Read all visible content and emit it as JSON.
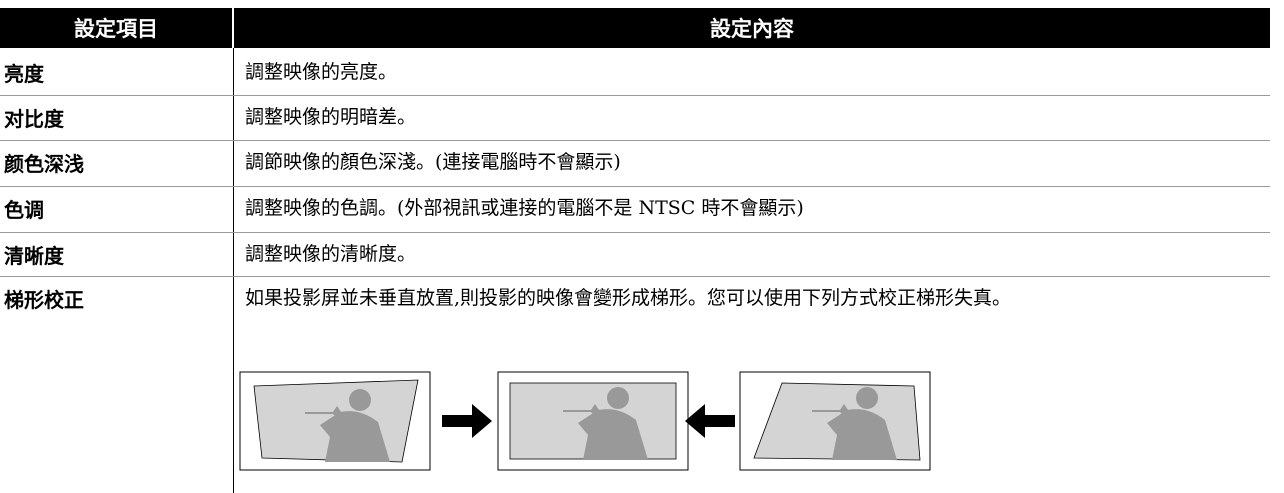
{
  "table": {
    "header": [
      "設定項目",
      "設定內容"
    ],
    "rows": [
      [
        "亮度",
        "調整映像的亮度。"
      ],
      [
        "对比度",
        "調整映像的明暗差。"
      ],
      [
        "颜色深浅",
        "調節映像的顏色深淺。(連接電腦時不會顯示)"
      ],
      [
        "色调",
        "調整映像的色調。(外部視訊或連接的電腦不是 NTSC 時不會顯示)"
      ],
      [
        "清晰度",
        "調整映像的清晰度。"
      ],
      [
        "梯形校正",
        "如果投影屏並未垂直放置,則投影的映像會變形成梯形。您可以使用下列方式校正梯形失真。"
      ]
    ]
  }
}
